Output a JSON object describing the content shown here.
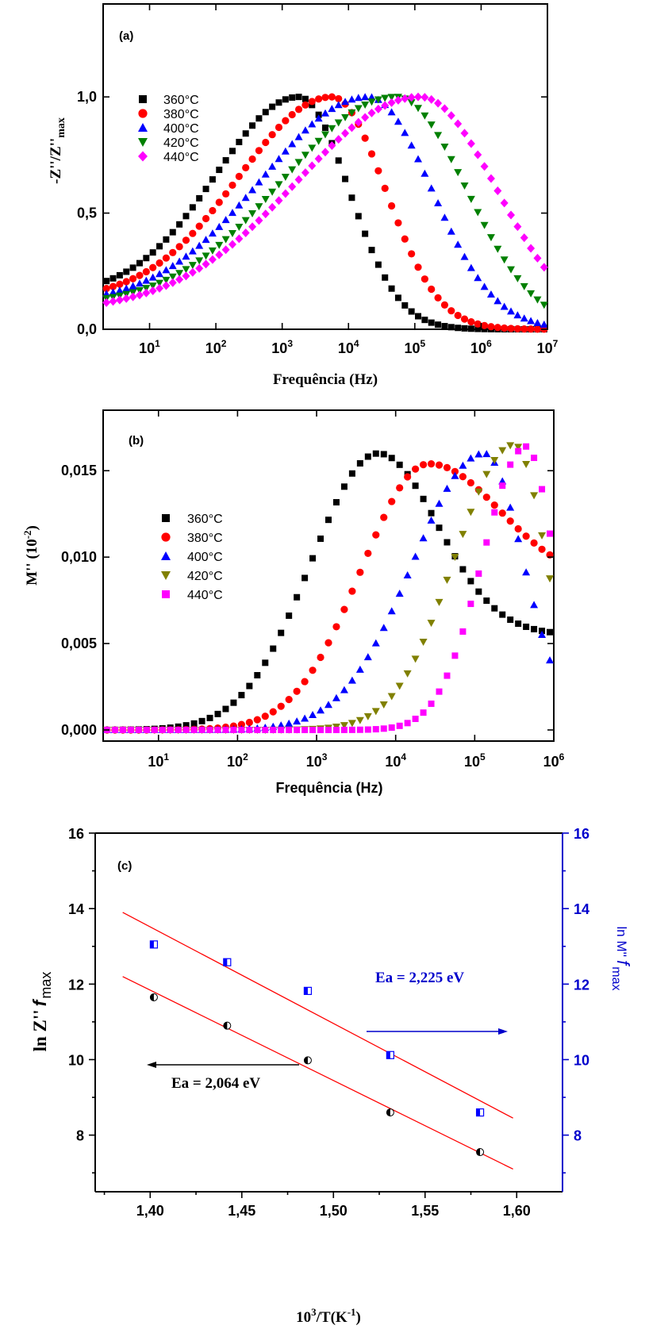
{
  "chart_data": [
    {
      "type": "scatter",
      "panel_label": "(a)",
      "xlabel": "Frequência (Hz)",
      "ylabel": "-Z''/Z''",
      "ylabel_sub": "max",
      "xscale": "log",
      "xlim_exp": [
        0.3,
        7
      ],
      "ylim": [
        0,
        1.4
      ],
      "xticks": [
        {
          "base": "10",
          "exp": "1",
          "v": 1
        },
        {
          "base": "10",
          "exp": "2",
          "v": 2
        },
        {
          "base": "10",
          "exp": "3",
          "v": 3
        },
        {
          "base": "10",
          "exp": "4",
          "v": 4
        },
        {
          "base": "10",
          "exp": "5",
          "v": 5
        },
        {
          "base": "10",
          "exp": "6",
          "v": 6
        },
        {
          "base": "10",
          "exp": "7",
          "v": 7
        }
      ],
      "yticks": [
        {
          "label": "0,0",
          "v": 0
        },
        {
          "label": "0,5",
          "v": 0.5
        },
        {
          "label": "1,0",
          "v": 1.0
        }
      ],
      "legend_position": "top-left",
      "series": [
        {
          "name": "360°C",
          "color": "#000000",
          "marker": "square",
          "logf_peak": 3.25,
          "sigma_low": 1.25,
          "sigma_high": 0.75,
          "baseline": 0.15
        },
        {
          "name": "380°C",
          "color": "#ff0000",
          "marker": "circle",
          "logf_peak": 3.75,
          "sigma_low": 1.4,
          "sigma_high": 0.8,
          "baseline": 0.13
        },
        {
          "name": "400°C",
          "color": "#0000ff",
          "marker": "triangle-up",
          "logf_peak": 4.3,
          "sigma_low": 1.6,
          "sigma_high": 0.95,
          "baseline": 0.11
        },
        {
          "name": "420°C",
          "color": "#008000",
          "marker": "triangle-down",
          "logf_peak": 4.72,
          "sigma_low": 1.7,
          "sigma_high": 1.05,
          "baseline": 0.1
        },
        {
          "name": "440°C",
          "color": "#ff00ff",
          "marker": "diamond",
          "logf_peak": 5.08,
          "sigma_low": 1.85,
          "sigma_high": 1.15,
          "baseline": 0.08
        }
      ]
    },
    {
      "type": "scatter",
      "panel_label": "(b)",
      "xlabel": "Frequência (Hz)",
      "ylabel": "M'' (10",
      "ylabel_sup": "-2",
      "ylabel_end": ")",
      "xscale": "log",
      "xlim_exp": [
        0.3,
        6
      ],
      "ylim": [
        0,
        0.0185
      ],
      "xticks": [
        {
          "base": "10",
          "exp": "1",
          "v": 1
        },
        {
          "base": "10",
          "exp": "2",
          "v": 2
        },
        {
          "base": "10",
          "exp": "3",
          "v": 3
        },
        {
          "base": "10",
          "exp": "4",
          "v": 4
        },
        {
          "base": "10",
          "exp": "5",
          "v": 5
        },
        {
          "base": "10",
          "exp": "6",
          "v": 6
        }
      ],
      "yticks": [
        {
          "label": "0,000",
          "v": 0
        },
        {
          "label": "0,005",
          "v": 0.005
        },
        {
          "label": "0,010",
          "v": 0.01
        },
        {
          "label": "0,015",
          "v": 0.015
        }
      ],
      "legend_position": "left",
      "series": [
        {
          "name": "360°C",
          "color": "#000000",
          "marker": "square",
          "logf_peak": 3.78,
          "peak": 0.016,
          "sigma_low": 0.85,
          "sigma_high": 0.75,
          "tail": 0.0055
        },
        {
          "name": "380°C",
          "color": "#ff0000",
          "marker": "circle",
          "logf_peak": 4.42,
          "peak": 0.0154,
          "sigma_low": 0.85,
          "sigma_high": 0.9,
          "tail": 0.0085
        },
        {
          "name": "400°C",
          "color": "#0000ff",
          "marker": "triangle-up",
          "logf_peak": 5.12,
          "peak": 0.016,
          "sigma_low": 0.9,
          "sigma_high": 0.5,
          "tail": 0.0
        },
        {
          "name": "420°C",
          "color": "#808000",
          "marker": "triangle-down",
          "logf_peak": 5.5,
          "peak": 0.0165,
          "sigma_low": 0.75,
          "sigma_high": 0.4,
          "tail": 0.0
        },
        {
          "name": "440°C",
          "color": "#ff00ff",
          "marker": "square",
          "logf_peak": 5.65,
          "peak": 0.0164,
          "sigma_low": 0.55,
          "sigma_high": 0.35,
          "tail": 0.0
        }
      ]
    },
    {
      "type": "scatter",
      "panel_label": "(c)",
      "xlabel_base": "10",
      "xlabel_sup": "3",
      "xlabel_mid": "/T(K",
      "xlabel_sup2": "-1",
      "xlabel_end": ")",
      "ylabel": "ln Z''",
      "ylabel_f": "f",
      "ylabel_sub": "max",
      "ylabel_right": "ln M''",
      "ylabel_right_f": "f",
      "ylabel_right_sub": "max",
      "xlim": [
        1.37,
        1.625
      ],
      "ylim": [
        6.5,
        16
      ],
      "xticks": [
        {
          "label": "1,40",
          "v": 1.4
        },
        {
          "label": "1,45",
          "v": 1.45
        },
        {
          "label": "1,50",
          "v": 1.5
        },
        {
          "label": "1,55",
          "v": 1.55
        },
        {
          "label": "1,60",
          "v": 1.6
        }
      ],
      "yticks": [
        {
          "label": "8",
          "v": 8
        },
        {
          "label": "10",
          "v": 10
        },
        {
          "label": "12",
          "v": 12
        },
        {
          "label": "14",
          "v": 14
        },
        {
          "label": "16",
          "v": 16
        }
      ],
      "yticks_right": [
        {
          "label": "8",
          "v": 8
        },
        {
          "label": "10",
          "v": 10
        },
        {
          "label": "12",
          "v": 12
        },
        {
          "label": "14",
          "v": 14
        },
        {
          "label": "16",
          "v": 16
        }
      ],
      "series": [
        {
          "name": "ln Z''",
          "color": "#000000",
          "marker": "half-filled-circle",
          "x": [
            1.402,
            1.442,
            1.486,
            1.531,
            1.58
          ],
          "y": [
            11.65,
            10.9,
            9.98,
            8.6,
            7.55
          ],
          "fit_line": {
            "x": [
              1.385,
              1.598
            ],
            "y": [
              12.2,
              7.1
            ],
            "color": "#ff0000"
          }
        },
        {
          "name": "ln M''",
          "color": "#0000ff",
          "marker": "half-filled-square",
          "x": [
            1.402,
            1.442,
            1.486,
            1.531,
            1.58
          ],
          "y": [
            13.05,
            12.58,
            11.82,
            10.12,
            8.6
          ],
          "fit_line": {
            "x": [
              1.385,
              1.598
            ],
            "y": [
              13.9,
              8.45
            ],
            "color": "#ff0000"
          }
        }
      ],
      "annotations": {
        "ea_z": "Ea  = 2,064 eV",
        "ea_m": "Ea  = 2,225 eV"
      }
    }
  ]
}
